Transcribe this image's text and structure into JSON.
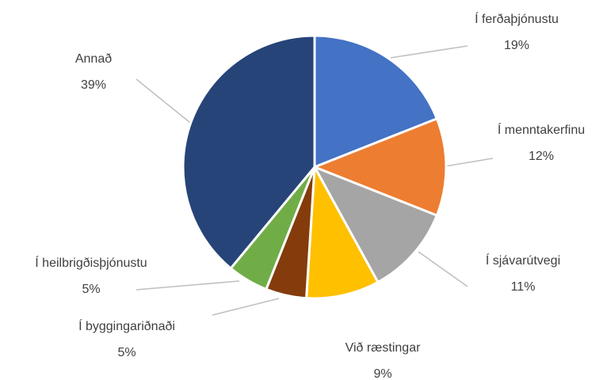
{
  "chart_data": {
    "type": "pie",
    "categories": [
      "Í ferðaþjónustu",
      "Í menntakerfinu",
      "Í sjávarútvegi",
      "Við ræstingar",
      "Í byggingariðnaði",
      "Í heilbrigðisþjónustu",
      "Annað"
    ],
    "values": [
      19,
      12,
      11,
      9,
      5,
      5,
      39
    ],
    "value_labels": [
      "19%",
      "12%",
      "11%",
      "9%",
      "5%",
      "5%",
      "39%"
    ],
    "colors": [
      "#4472c4",
      "#ed7d31",
      "#a5a5a5",
      "#ffc000",
      "#843c0c",
      "#70ad47",
      "#264478"
    ]
  }
}
